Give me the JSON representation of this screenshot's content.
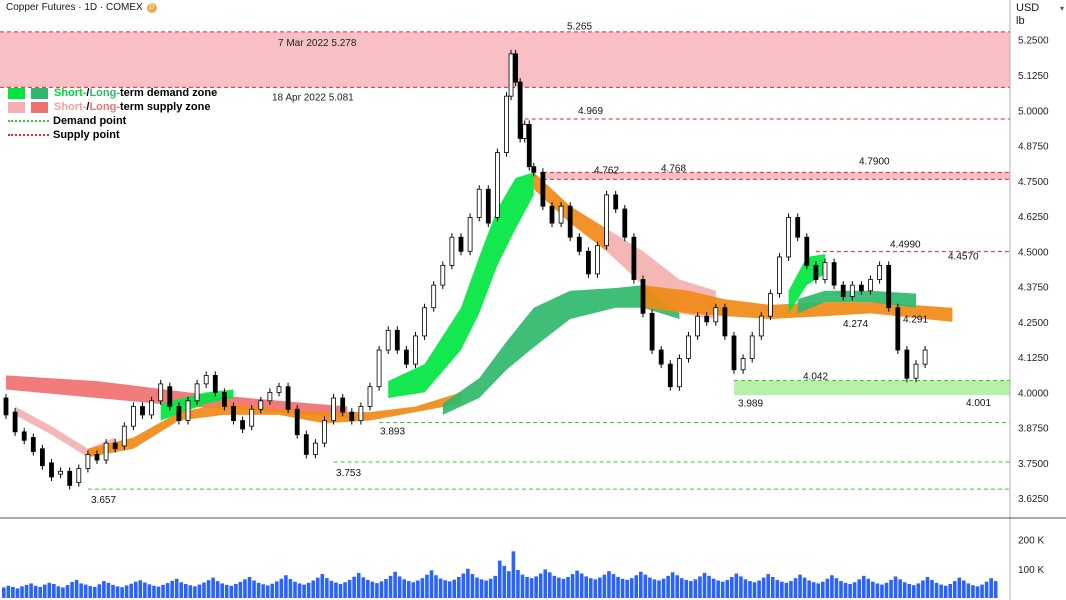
{
  "header": {
    "title": "Copper Futures · 1D · COMEX",
    "badge": "D"
  },
  "units": {
    "currency": "USD",
    "unit": "lb"
  },
  "legend": {
    "demand_zone": {
      "short": "Short-",
      "sep": " / ",
      "long": "Long-",
      "rest": "term demand zone"
    },
    "supply_zone": {
      "short": "Short-",
      "sep": " / ",
      "long": "Long-",
      "rest": "term supply zone"
    },
    "demand_point": "Demand point",
    "supply_point": "Supply point"
  },
  "colors": {
    "short_demand": "#00e640",
    "long_demand": "#2eb86b",
    "short_supply": "#f4b0b0",
    "long_supply": "#f07070",
    "orange": "#f08a16",
    "demand_point": "#33cc33",
    "supply_point": "#ee2222",
    "volume": "#2962ff",
    "up_candle": "#ffffff",
    "down_candle": "#000000"
  },
  "chart_data": {
    "type": "candlestick",
    "ylim": [
      3.59,
      5.32
    ],
    "y_ticks": [
      3.625,
      3.75,
      3.875,
      4.0,
      4.125,
      4.25,
      4.375,
      4.5,
      4.625,
      4.75,
      4.875,
      5.0,
      5.125,
      5.25
    ],
    "y_tick_labels": [
      "3.6250",
      "3.7500",
      "3.8750",
      "4.0000",
      "4.1250",
      "4.2500",
      "4.3750",
      "4.5000",
      "4.6250",
      "4.7500",
      "4.8750",
      "5.0000",
      "5.1250",
      "5.2500"
    ],
    "volume_ticks": [
      {
        "value": 200000,
        "label": "200 K"
      },
      {
        "value": 100000,
        "label": "100 K"
      }
    ],
    "volume_max": 240000,
    "candles": [
      {
        "b": 0,
        "o": 3.98,
        "c": 3.92
      },
      {
        "b": 2,
        "o": 3.93,
        "c": 3.86
      },
      {
        "b": 4,
        "o": 3.86,
        "c": 3.83
      },
      {
        "b": 6,
        "o": 3.84,
        "c": 3.79
      },
      {
        "b": 8,
        "o": 3.8,
        "c": 3.74
      },
      {
        "b": 10,
        "o": 3.75,
        "c": 3.7
      },
      {
        "b": 12,
        "o": 3.71,
        "c": 3.72
      },
      {
        "b": 14,
        "o": 3.72,
        "c": 3.67
      },
      {
        "b": 16,
        "o": 3.68,
        "c": 3.73
      },
      {
        "b": 18,
        "o": 3.73,
        "c": 3.78
      },
      {
        "b": 20,
        "o": 3.78,
        "c": 3.76
      },
      {
        "b": 22,
        "o": 3.76,
        "c": 3.82
      },
      {
        "b": 24,
        "o": 3.82,
        "c": 3.8
      },
      {
        "b": 26,
        "o": 3.81,
        "c": 3.88
      },
      {
        "b": 28,
        "o": 3.88,
        "c": 3.95
      },
      {
        "b": 30,
        "o": 3.95,
        "c": 3.92
      },
      {
        "b": 32,
        "o": 3.92,
        "c": 3.97
      },
      {
        "b": 34,
        "o": 3.97,
        "c": 4.03
      },
      {
        "b": 36,
        "o": 4.02,
        "c": 3.95
      },
      {
        "b": 38,
        "o": 3.95,
        "c": 3.9
      },
      {
        "b": 40,
        "o": 3.9,
        "c": 3.97
      },
      {
        "b": 42,
        "o": 3.97,
        "c": 4.03
      },
      {
        "b": 44,
        "o": 4.03,
        "c": 4.06
      },
      {
        "b": 46,
        "o": 4.06,
        "c": 4.0
      },
      {
        "b": 48,
        "o": 4.0,
        "c": 3.95
      },
      {
        "b": 50,
        "o": 3.95,
        "c": 3.9
      },
      {
        "b": 52,
        "o": 3.9,
        "c": 3.87
      },
      {
        "b": 54,
        "o": 3.88,
        "c": 3.94
      },
      {
        "b": 56,
        "o": 3.94,
        "c": 3.97
      },
      {
        "b": 58,
        "o": 3.97,
        "c": 4.0
      },
      {
        "b": 60,
        "o": 4.0,
        "c": 4.02
      },
      {
        "b": 62,
        "o": 4.02,
        "c": 3.94
      },
      {
        "b": 64,
        "o": 3.94,
        "c": 3.85
      },
      {
        "b": 66,
        "o": 3.85,
        "c": 3.78
      },
      {
        "b": 68,
        "o": 3.78,
        "c": 3.82
      },
      {
        "b": 70,
        "o": 3.82,
        "c": 3.9
      },
      {
        "b": 72,
        "o": 3.9,
        "c": 3.98
      },
      {
        "b": 74,
        "o": 3.98,
        "c": 3.93
      },
      {
        "b": 76,
        "o": 3.93,
        "c": 3.9
      },
      {
        "b": 78,
        "o": 3.9,
        "c": 3.95
      },
      {
        "b": 80,
        "o": 3.95,
        "c": 4.02
      },
      {
        "b": 82,
        "o": 4.02,
        "c": 4.15
      },
      {
        "b": 84,
        "o": 4.15,
        "c": 4.22
      },
      {
        "b": 86,
        "o": 4.22,
        "c": 4.15
      },
      {
        "b": 88,
        "o": 4.15,
        "c": 4.1
      },
      {
        "b": 90,
        "o": 4.1,
        "c": 4.2
      },
      {
        "b": 92,
        "o": 4.2,
        "c": 4.3
      },
      {
        "b": 94,
        "o": 4.3,
        "c": 4.38
      },
      {
        "b": 96,
        "o": 4.38,
        "c": 4.45
      },
      {
        "b": 98,
        "o": 4.45,
        "c": 4.55
      },
      {
        "b": 100,
        "o": 4.55,
        "c": 4.5
      },
      {
        "b": 102,
        "o": 4.5,
        "c": 4.62
      },
      {
        "b": 104,
        "o": 4.62,
        "c": 4.72
      },
      {
        "b": 106,
        "o": 4.72,
        "c": 4.6
      },
      {
        "b": 108,
        "o": 4.62,
        "c": 4.85
      },
      {
        "b": 110,
        "o": 4.85,
        "c": 5.05
      },
      {
        "b": 111,
        "o": 5.05,
        "c": 5.2
      },
      {
        "b": 112,
        "o": 5.2,
        "c": 5.1
      },
      {
        "b": 113,
        "o": 5.1,
        "c": 4.9
      },
      {
        "b": 114,
        "o": 4.9,
        "c": 4.95
      },
      {
        "b": 115,
        "o": 4.95,
        "c": 4.8
      },
      {
        "b": 116,
        "o": 4.8,
        "c": 4.78
      },
      {
        "b": 118,
        "o": 4.78,
        "c": 4.66
      },
      {
        "b": 120,
        "o": 4.66,
        "c": 4.6
      },
      {
        "b": 122,
        "o": 4.6,
        "c": 4.66
      },
      {
        "b": 124,
        "o": 4.66,
        "c": 4.55
      },
      {
        "b": 126,
        "o": 4.55,
        "c": 4.5
      },
      {
        "b": 128,
        "o": 4.5,
        "c": 4.42
      },
      {
        "b": 130,
        "o": 4.42,
        "c": 4.52
      },
      {
        "b": 132,
        "o": 4.52,
        "c": 4.7
      },
      {
        "b": 134,
        "o": 4.7,
        "c": 4.65
      },
      {
        "b": 136,
        "o": 4.65,
        "c": 4.55
      },
      {
        "b": 138,
        "o": 4.55,
        "c": 4.4
      },
      {
        "b": 140,
        "o": 4.4,
        "c": 4.28
      },
      {
        "b": 142,
        "o": 4.28,
        "c": 4.15
      },
      {
        "b": 144,
        "o": 4.15,
        "c": 4.1
      },
      {
        "b": 146,
        "o": 4.1,
        "c": 4.02
      },
      {
        "b": 148,
        "o": 4.02,
        "c": 4.12
      },
      {
        "b": 150,
        "o": 4.12,
        "c": 4.2
      },
      {
        "b": 152,
        "o": 4.2,
        "c": 4.27
      },
      {
        "b": 154,
        "o": 4.27,
        "c": 4.25
      },
      {
        "b": 156,
        "o": 4.25,
        "c": 4.3
      },
      {
        "b": 158,
        "o": 4.3,
        "c": 4.2
      },
      {
        "b": 160,
        "o": 4.2,
        "c": 4.08
      },
      {
        "b": 162,
        "o": 4.08,
        "c": 4.12
      },
      {
        "b": 164,
        "o": 4.12,
        "c": 4.2
      },
      {
        "b": 166,
        "o": 4.2,
        "c": 4.27
      },
      {
        "b": 168,
        "o": 4.27,
        "c": 4.35
      },
      {
        "b": 170,
        "o": 4.35,
        "c": 4.48
      },
      {
        "b": 172,
        "o": 4.48,
        "c": 4.62
      },
      {
        "b": 174,
        "o": 4.62,
        "c": 4.55
      },
      {
        "b": 176,
        "o": 4.55,
        "c": 4.45
      },
      {
        "b": 178,
        "o": 4.45,
        "c": 4.4
      },
      {
        "b": 180,
        "o": 4.4,
        "c": 4.46
      },
      {
        "b": 182,
        "o": 4.46,
        "c": 4.38
      },
      {
        "b": 184,
        "o": 4.38,
        "c": 4.34
      },
      {
        "b": 186,
        "o": 4.34,
        "c": 4.38
      },
      {
        "b": 188,
        "o": 4.38,
        "c": 4.36
      },
      {
        "b": 190,
        "o": 4.36,
        "c": 4.4
      },
      {
        "b": 192,
        "o": 4.4,
        "c": 4.45
      },
      {
        "b": 194,
        "o": 4.45,
        "c": 4.3
      },
      {
        "b": 196,
        "o": 4.3,
        "c": 4.15
      },
      {
        "b": 198,
        "o": 4.15,
        "c": 4.05
      },
      {
        "b": 200,
        "o": 4.05,
        "c": 4.1
      },
      {
        "b": 202,
        "o": 4.1,
        "c": 4.15
      }
    ],
    "volumes": [
      36000,
      42000,
      38000,
      33000,
      40000,
      45000,
      50000,
      42000,
      38000,
      46000,
      52000,
      48000,
      40000,
      36000,
      44000,
      55000,
      62000,
      50000,
      46000,
      41000,
      38000,
      47000,
      58000,
      52000,
      45000,
      40000,
      37000,
      43000,
      49000,
      56000,
      61000,
      53000,
      47000,
      42000,
      39000,
      45000,
      51000,
      59000,
      66000,
      54000,
      48000,
      44000,
      40000,
      46000,
      53000,
      61000,
      70000,
      58000,
      50000,
      45000,
      42000,
      48000,
      55000,
      64000,
      72000,
      60000,
      52000,
      47000,
      43000,
      49000,
      57000,
      66000,
      78000,
      65000,
      56000,
      50000,
      46000,
      52000,
      60000,
      70000,
      82000,
      68000,
      59000,
      53000,
      48000,
      54000,
      62000,
      73000,
      86000,
      71000,
      62000,
      56000,
      51000,
      57000,
      65000,
      76000,
      90000,
      74000,
      64000,
      58000,
      54000,
      60000,
      68000,
      80000,
      95000,
      78000,
      67000,
      61000,
      57000,
      63000,
      72000,
      84000,
      100000,
      82000,
      70000,
      64000,
      60000,
      66000,
      76000,
      128000,
      110000,
      92000,
      160000,
      96000,
      80000,
      72000,
      68000,
      74000,
      84000,
      98000,
      88000,
      76000,
      70000,
      66000,
      72000,
      82000,
      94000,
      84000,
      74000,
      68000,
      64000,
      70000,
      80000,
      92000,
      82000,
      72000,
      66000,
      62000,
      68000,
      78000,
      90000,
      80000,
      70000,
      64000,
      60000,
      66000,
      76000,
      88000,
      78000,
      68000,
      62000,
      58000,
      64000,
      74000,
      86000,
      76000,
      66000,
      60000,
      56000,
      62000,
      72000,
      84000,
      74000,
      64000,
      58000,
      54000,
      60000,
      70000,
      82000,
      72000,
      62000,
      56000,
      52000,
      58000,
      68000,
      80000,
      70000,
      60000,
      54000,
      50000,
      56000,
      66000,
      78000,
      68000,
      58000,
      52000,
      48000,
      54000,
      64000,
      76000,
      66000,
      56000,
      50000,
      46000,
      52000,
      62000,
      74000,
      64000,
      54000,
      48000,
      44000,
      50000,
      60000,
      72000,
      62000,
      52000,
      46000,
      42000,
      48000,
      58000,
      70000,
      60000,
      50000,
      44000,
      40000,
      46000,
      56000,
      68000,
      58000
    ]
  },
  "zones": [
    {
      "id": "supply-top",
      "label_top": "7 Mar 2022 5.278",
      "label_bottom": "18 Apr 2022 5.081",
      "y_from": 5.081,
      "y_to": 5.278
    },
    {
      "id": "supply-mid",
      "y_from": 4.755,
      "y_to": 4.78
    },
    {
      "id": "demand-bottom",
      "y_from": 3.99,
      "y_to": 4.042
    }
  ],
  "price_labels": [
    {
      "id": "label-5265",
      "text": "5.265",
      "value": 5.265
    },
    {
      "id": "label-4969",
      "text": "4.969",
      "value": 4.969
    },
    {
      "id": "label-4762",
      "text": "4.762",
      "value": 4.762
    },
    {
      "id": "label-4768",
      "text": "4.768",
      "value": 4.768
    },
    {
      "id": "label-47900",
      "text": "4.7900",
      "value": 4.79
    },
    {
      "id": "label-44990",
      "text": "4.4990",
      "value": 4.499
    },
    {
      "id": "label-44570",
      "text": "4.4570",
      "value": 4.457
    },
    {
      "id": "label-4274",
      "text": "4.274",
      "value": 4.274
    },
    {
      "id": "label-4291",
      "text": "4.291",
      "value": 4.291
    },
    {
      "id": "label-4042",
      "text": "4.042",
      "value": 4.042
    },
    {
      "id": "label-3989",
      "text": "3.989",
      "value": 3.989
    },
    {
      "id": "label-4001",
      "text": "4.001",
      "value": 4.001
    },
    {
      "id": "label-3893",
      "text": "3.893",
      "value": 3.893
    },
    {
      "id": "label-3753",
      "text": "3.753",
      "value": 3.753
    },
    {
      "id": "label-3657",
      "text": "3.657",
      "value": 3.657
    }
  ],
  "demand_lines": [
    3.893,
    3.753,
    3.657
  ],
  "supply_lines": [
    4.969,
    4.499
  ]
}
